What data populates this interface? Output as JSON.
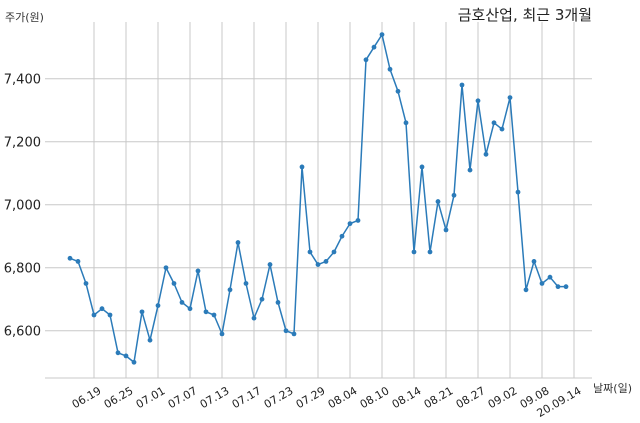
{
  "chart_data": {
    "type": "line",
    "title": "금호산업, 최근 3개월",
    "ylabel": "주가(원)",
    "xlabel": "날짜(일)",
    "ylim": [
      6450,
      7580
    ],
    "yticks": [
      6600,
      6800,
      7000,
      7200,
      7400
    ],
    "ytick_labels": [
      "6,600",
      "6,800",
      "7,000",
      "7,200",
      "7,400"
    ],
    "xticks": [
      {
        "index": 3,
        "label": "06.19"
      },
      {
        "index": 7,
        "label": "06.25"
      },
      {
        "index": 11,
        "label": "07.01"
      },
      {
        "index": 15,
        "label": "07.07"
      },
      {
        "index": 19,
        "label": "07.13"
      },
      {
        "index": 23,
        "label": "07.17"
      },
      {
        "index": 27,
        "label": "07.23"
      },
      {
        "index": 31,
        "label": "07.29"
      },
      {
        "index": 35,
        "label": "08.04"
      },
      {
        "index": 39,
        "label": "08.10"
      },
      {
        "index": 43,
        "label": "08.14"
      },
      {
        "index": 47,
        "label": "08.21"
      },
      {
        "index": 51,
        "label": "08.27"
      },
      {
        "index": 55,
        "label": "09.02"
      },
      {
        "index": 59,
        "label": "09.08"
      },
      {
        "index": 63,
        "label": "20.09.14"
      }
    ],
    "grid": true,
    "color": "#2b7bb9",
    "series": [
      {
        "values": [
          6830,
          6820,
          6750,
          6650,
          6670,
          6650,
          6530,
          6520,
          6500,
          6660,
          6570,
          6680,
          6800,
          6750,
          6690,
          6670,
          6790,
          6660,
          6650,
          6590,
          6730,
          6880,
          6750,
          6640,
          6700,
          6810,
          6690,
          6600,
          6590,
          7120,
          6850,
          6810,
          6820,
          6850,
          6900,
          6940,
          6950,
          7460,
          7500,
          7540,
          7430,
          7360,
          7260,
          6850,
          7120,
          6850,
          7010,
          6920,
          7030,
          7380,
          7110,
          7330,
          7160,
          7260,
          7240,
          7340,
          7040,
          6730,
          6820,
          6750,
          6770,
          6740,
          6740
        ]
      }
    ]
  }
}
